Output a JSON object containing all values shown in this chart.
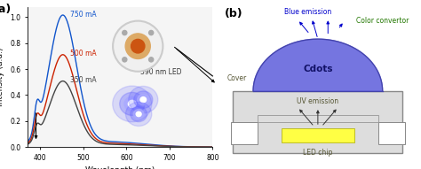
{
  "fig_width": 4.74,
  "fig_height": 1.91,
  "dpi": 100,
  "panel_a": {
    "label": "(a)",
    "xlabel": "Wavelength (nm)",
    "ylabel": "Intensity (a.u.)",
    "xlim": [
      370,
      800
    ],
    "ylim": [
      0,
      1.08
    ],
    "xticks": [
      400,
      500,
      600,
      700,
      800
    ],
    "curves": [
      {
        "label": "750 mA",
        "color": "#1155cc",
        "peak_x": 452,
        "peak_y": 1.0,
        "shoulder_y": 0.18
      },
      {
        "label": "500 mA",
        "color": "#cc2200",
        "peak_x": 452,
        "peak_y": 0.7,
        "shoulder_y": 0.13
      },
      {
        "label": "350 mA",
        "color": "#444444",
        "peak_x": 452,
        "peak_y": 0.5,
        "shoulder_y": 0.09
      }
    ],
    "bg_color": "#f5f5f5"
  },
  "panel_b": {
    "label": "(b)",
    "dome_color": "#6666dd",
    "dome_edge_color": "#4444aa",
    "dome_label": "Cdots",
    "dome_label_color": "#111166",
    "cover_label": "Cover",
    "cover_label_color": "#555533",
    "blue_emission_label": "Blue emission",
    "blue_emission_color": "#0000cc",
    "color_convertor_label": "Color convertor",
    "color_convertor_color": "#227700",
    "uv_emission_label": "UV emission",
    "uv_emission_color": "#555533",
    "led_chip_label": "LED chip",
    "led_chip_color": "#555533",
    "led_chip_fill": "#ffff44",
    "housing_color": "#dddddd",
    "housing_edge": "#888888",
    "bg_color": "#ffffff"
  }
}
